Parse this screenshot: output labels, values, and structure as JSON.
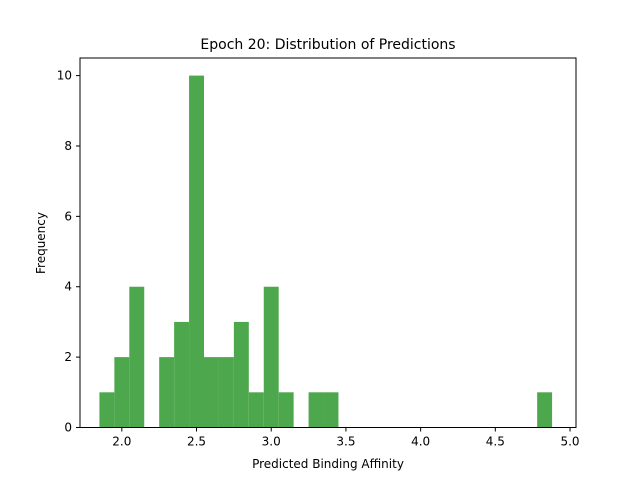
{
  "chart_data": {
    "type": "bar",
    "title": "Epoch 20: Distribution of Predictions",
    "xlabel": "Predicted Binding Affinity",
    "ylabel": "Frequency",
    "bin_width": 0.1,
    "bins": [
      {
        "start": 1.85,
        "count": 1
      },
      {
        "start": 1.95,
        "count": 2
      },
      {
        "start": 2.05,
        "count": 4
      },
      {
        "start": 2.15,
        "count": 0
      },
      {
        "start": 2.25,
        "count": 2
      },
      {
        "start": 2.35,
        "count": 3
      },
      {
        "start": 2.45,
        "count": 10
      },
      {
        "start": 2.55,
        "count": 2
      },
      {
        "start": 2.65,
        "count": 2
      },
      {
        "start": 2.75,
        "count": 3
      },
      {
        "start": 2.85,
        "count": 1
      },
      {
        "start": 2.95,
        "count": 4
      },
      {
        "start": 3.05,
        "count": 1
      },
      {
        "start": 3.15,
        "count": 0
      },
      {
        "start": 3.25,
        "count": 1
      },
      {
        "start": 3.35,
        "count": 1
      },
      {
        "start": 4.78,
        "count": 1
      }
    ],
    "xlim": [
      1.72,
      5.04
    ],
    "ylim": [
      0,
      10.5
    ],
    "xticks": [
      {
        "value": 2.0,
        "label": "2.0"
      },
      {
        "value": 2.5,
        "label": "2.5"
      },
      {
        "value": 3.0,
        "label": "3.0"
      },
      {
        "value": 3.5,
        "label": "3.5"
      },
      {
        "value": 4.0,
        "label": "4.0"
      },
      {
        "value": 4.5,
        "label": "4.5"
      },
      {
        "value": 5.0,
        "label": "5.0"
      }
    ],
    "yticks": [
      {
        "value": 0,
        "label": "0"
      },
      {
        "value": 2,
        "label": "2"
      },
      {
        "value": 4,
        "label": "4"
      },
      {
        "value": 6,
        "label": "6"
      },
      {
        "value": 8,
        "label": "8"
      },
      {
        "value": 10,
        "label": "10"
      }
    ],
    "bar_color": "#4da84d",
    "grid": false,
    "legend": "none"
  }
}
